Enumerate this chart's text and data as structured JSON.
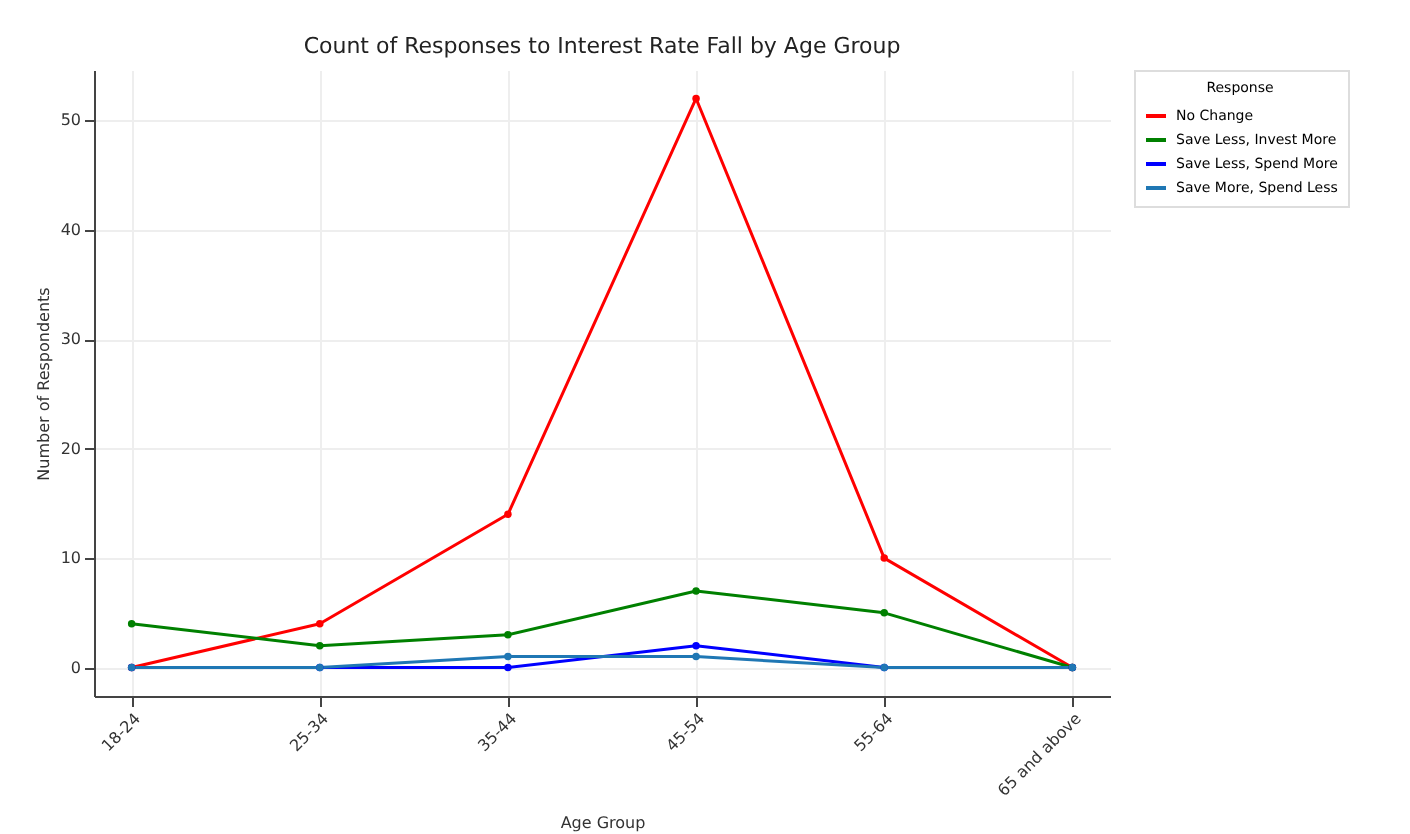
{
  "chart_data": {
    "type": "line",
    "title": "Count of Responses to Interest Rate Fall by Age Group",
    "xlabel": "Age Group",
    "ylabel": "Number of Respondents",
    "legend_title": "Response",
    "categories": [
      "18-24",
      "25-34",
      "35-44",
      "45-54",
      "55-64",
      "65 and above"
    ],
    "series": [
      {
        "name": "No Change",
        "color": "#ff0000",
        "values": [
          0,
          4,
          14,
          52,
          10,
          0
        ]
      },
      {
        "name": "Save Less, Invest More",
        "color": "#008000",
        "values": [
          4,
          2,
          3,
          7,
          5,
          0
        ]
      },
      {
        "name": "Save Less, Spend More",
        "color": "#0000ff",
        "values": [
          0,
          0,
          0,
          2,
          0,
          0
        ]
      },
      {
        "name": "Save More, Spend Less",
        "color": "#1f77b4",
        "values": [
          0,
          0,
          1,
          1,
          0,
          0
        ]
      }
    ],
    "ylim": [
      -2.6,
      54.6
    ],
    "yticks": [
      0,
      10,
      20,
      30,
      40,
      50
    ],
    "grid": true,
    "legend": "top right",
    "marker": "circle",
    "line_style": "solid"
  }
}
